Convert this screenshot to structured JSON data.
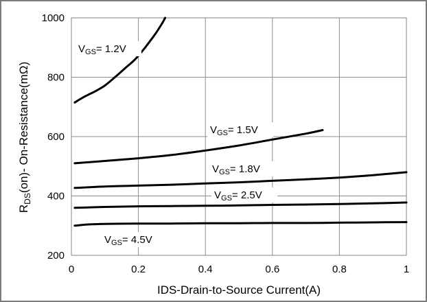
{
  "chart_data": {
    "type": "line",
    "xlabel": "IDS-Drain-to-Source  Current(A)",
    "ylabel": "R",
    "ylabel_sub": "DS",
    "ylabel_rest": "(on)- On-Resistance(mΩ)",
    "xlim": [
      0,
      1
    ],
    "ylim": [
      200,
      1000
    ],
    "x_ticks": [
      "0",
      "0.2",
      "0.4",
      "0.6",
      "0.8",
      "1"
    ],
    "y_ticks": [
      "200",
      "400",
      "600",
      "800",
      "1000"
    ],
    "grid": true,
    "series": [
      {
        "name": "VGS= 1.2V",
        "label_main": "V",
        "label_sub": "GS",
        "label_rest": "= 1.2V",
        "x": [
          0.01,
          0.04,
          0.07,
          0.1,
          0.13,
          0.16,
          0.19,
          0.22,
          0.25,
          0.27,
          0.28
        ],
        "y": [
          715,
          735,
          752,
          772,
          800,
          830,
          860,
          900,
          945,
          980,
          1000
        ]
      },
      {
        "name": "VGS= 1.5V",
        "label_main": "V",
        "label_sub": "GS",
        "label_rest": "= 1.5V",
        "x": [
          0.01,
          0.1,
          0.2,
          0.3,
          0.4,
          0.5,
          0.6,
          0.7,
          0.75
        ],
        "y": [
          510,
          518,
          527,
          538,
          553,
          570,
          590,
          610,
          622
        ]
      },
      {
        "name": "VGS= 1.8V",
        "label_main": "V",
        "label_sub": "GS",
        "label_rest": "= 1.8V",
        "x": [
          0.01,
          0.1,
          0.2,
          0.3,
          0.4,
          0.5,
          0.6,
          0.7,
          0.8,
          0.9,
          1.0
        ],
        "y": [
          427,
          432,
          435,
          438,
          442,
          446,
          451,
          456,
          462,
          470,
          480
        ]
      },
      {
        "name": "VGS= 2.5V",
        "label_main": "V",
        "label_sub": "GS",
        "label_rest": "= 2.5V",
        "x": [
          0.01,
          0.1,
          0.2,
          0.3,
          0.4,
          0.5,
          0.6,
          0.7,
          0.8,
          0.9,
          1.0
        ],
        "y": [
          360,
          363,
          365,
          366,
          367,
          368,
          370,
          371,
          373,
          375,
          378
        ]
      },
      {
        "name": "VGS= 4.5V",
        "label_main": "V",
        "label_sub": "GS",
        "label_rest": "= 4.5V",
        "x": [
          0.01,
          0.05,
          0.1,
          0.2,
          0.3,
          0.4,
          0.5,
          0.6,
          0.7,
          0.8,
          0.9,
          1.0
        ],
        "y": [
          300,
          304,
          306,
          307,
          307,
          308,
          308,
          309,
          309,
          310,
          311,
          312
        ]
      }
    ]
  }
}
